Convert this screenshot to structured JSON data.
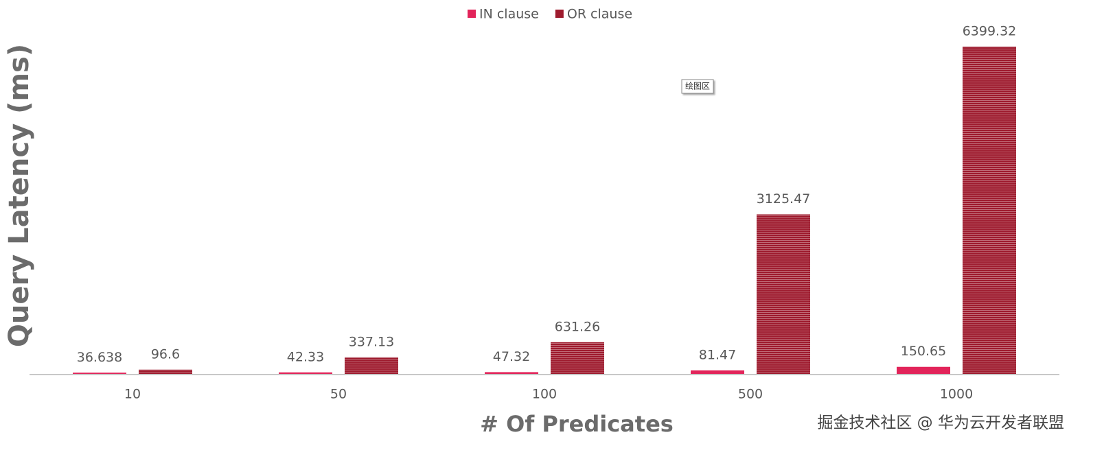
{
  "chart_data": {
    "type": "bar",
    "x_label": "# Of Predicates",
    "y_label": "Query Latency (ms)",
    "categories": [
      "10",
      "50",
      "100",
      "500",
      "1000"
    ],
    "series": [
      {
        "name": "IN clause",
        "color": "#e2245a",
        "values": [
          36.638,
          42.33,
          47.32,
          81.47,
          150.65
        ]
      },
      {
        "name": "OR clause",
        "color": "#9e1b2e",
        "values": [
          96.6,
          337.13,
          631.26,
          3125.47,
          6399.32
        ]
      }
    ],
    "ylim": [
      0,
      7000
    ],
    "legend": "top",
    "annotations": [
      "绘图区",
      "掘金技术社区 @ 华为云开发者联盟"
    ]
  }
}
